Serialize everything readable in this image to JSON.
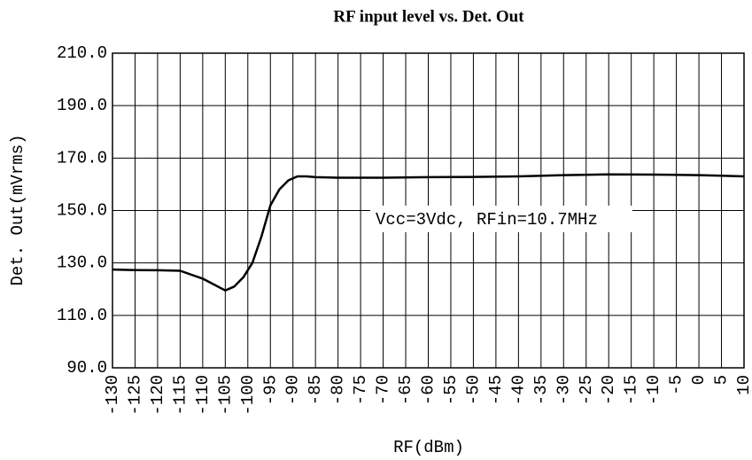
{
  "chart_data": {
    "type": "line",
    "title": "RF input level vs. Det. Out",
    "xlabel": "RF(dBm)",
    "ylabel": "Det. Out(mVrms)",
    "annotation": "Vcc=3Vdc, RFin=10.7MHz",
    "color": "#000000",
    "grid": true,
    "x": [
      -130,
      -125,
      -120,
      -115,
      -110,
      -105,
      -103,
      -101,
      -99,
      -97,
      -95,
      -93,
      -91,
      -89,
      -87,
      -85,
      -80,
      -70,
      -60,
      -50,
      -40,
      -30,
      -20,
      -10,
      0,
      5,
      10
    ],
    "values": [
      127.5,
      127.3,
      127.2,
      127,
      124,
      119.5,
      121,
      124.5,
      130,
      140,
      152,
      158,
      161.5,
      163,
      163,
      162.7,
      162.5,
      162.5,
      162.7,
      162.8,
      163,
      163.5,
      163.8,
      163.7,
      163.5,
      163.3,
      163
    ],
    "xlim": [
      -130,
      10
    ],
    "xticks": [
      -130,
      -125,
      -120,
      -115,
      -110,
      -105,
      -100,
      -95,
      -90,
      -85,
      -80,
      -75,
      -70,
      -65,
      -60,
      -55,
      -50,
      -45,
      -40,
      -35,
      -30,
      -25,
      -20,
      -15,
      -10,
      -5,
      0,
      5,
      10
    ],
    "ylim": [
      90,
      210
    ],
    "yticks": [
      {
        "value": 90,
        "label": "90.0"
      },
      {
        "value": 110,
        "label": "110.0"
      },
      {
        "value": 130,
        "label": "130.0"
      },
      {
        "value": 150,
        "label": "150.0"
      },
      {
        "value": 170,
        "label": "170.0"
      },
      {
        "value": 190,
        "label": "190.0"
      },
      {
        "value": 210,
        "label": "210.0"
      }
    ]
  }
}
